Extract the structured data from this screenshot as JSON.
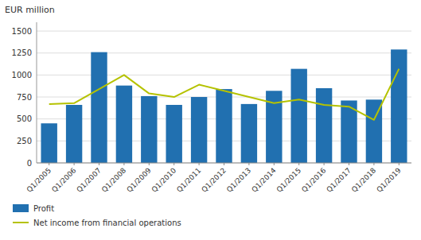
{
  "chart_data": {
    "type": "bar",
    "ylabel": "EUR million",
    "categories": [
      "Q1/2005",
      "Q1/2006",
      "Q1/2007",
      "Q1/2008",
      "Q1/2009",
      "Q1/2010",
      "Q1/2011",
      "Q1/2012",
      "Q1/2013",
      "Q1/2014",
      "Q1/2015",
      "Q1/2016",
      "Q1/2017",
      "Q1/2018",
      "Q1/2019"
    ],
    "series": [
      {
        "name": "Profit",
        "type": "bar",
        "color": "#2170b0",
        "values": [
          450,
          660,
          1260,
          880,
          760,
          660,
          750,
          840,
          670,
          820,
          1070,
          850,
          710,
          720,
          1290
        ]
      },
      {
        "name": "Net income from financial operations",
        "type": "line",
        "color": "#b5c200",
        "values": [
          670,
          680,
          840,
          1000,
          790,
          750,
          890,
          820,
          750,
          680,
          720,
          660,
          640,
          490,
          1070
        ]
      }
    ],
    "ylim": [
      0,
      1600
    ],
    "yticks": [
      0,
      250,
      500,
      750,
      1000,
      1250,
      1500
    ],
    "grid": true,
    "legend": "bottom"
  }
}
